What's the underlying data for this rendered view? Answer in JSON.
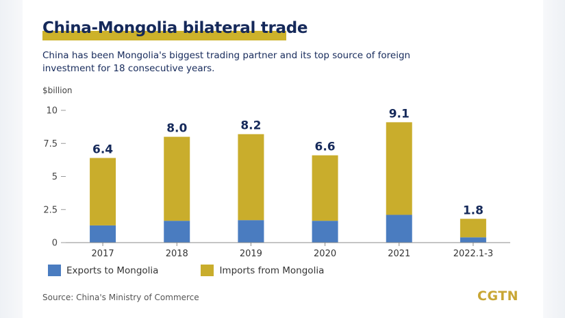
{
  "chart_data": {
    "type": "bar",
    "stacked": true,
    "title": "China-Mongolia bilateral trade",
    "subtitle": "China has been Mongolia's biggest trading partner and its top source of foreign investment for 18 consecutive years.",
    "ylabel": "$billion",
    "ylim": [
      0,
      10
    ],
    "yticks": [
      "10",
      "7.5",
      "5",
      "2.5",
      "0"
    ],
    "ytick_values": [
      10,
      7.5,
      5,
      2.5,
      0
    ],
    "categories": [
      "2017",
      "2018",
      "2019",
      "2020",
      "2021",
      "2022.1-3"
    ],
    "totals": [
      "6.4",
      "8.0",
      "8.2",
      "6.6",
      "9.1",
      "1.8"
    ],
    "total_values": [
      6.4,
      8.0,
      8.2,
      6.6,
      9.1,
      1.8
    ],
    "series": [
      {
        "name": "Exports to Mongolia",
        "color": "#4a7cc0",
        "values": [
          1.3,
          1.65,
          1.7,
          1.65,
          2.1,
          0.4
        ]
      },
      {
        "name": "Imports from Mongolia",
        "color": "#c9ad2c",
        "values": [
          5.1,
          6.35,
          6.5,
          4.95,
          7.0,
          1.4
        ]
      }
    ],
    "legend_position": "bottom-left",
    "grid": false
  },
  "source": "Source: China's Ministry of Commerce",
  "logo": "CGTN",
  "colors": {
    "title": "#15295a",
    "accent": "#cdb22a",
    "exports": "#4a7cc0",
    "imports": "#c9ad2c"
  }
}
